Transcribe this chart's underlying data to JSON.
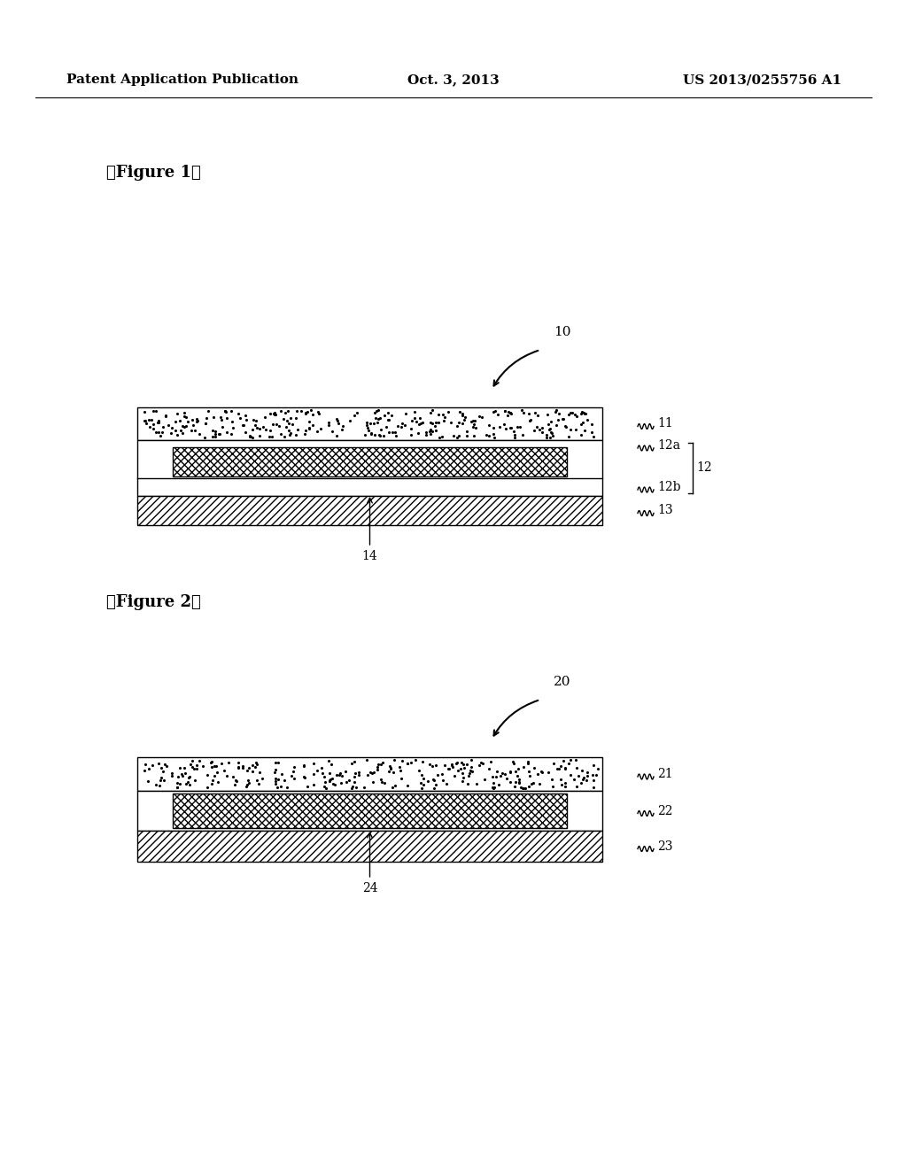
{
  "bg_color": "#ffffff",
  "header_left": "Patent Application Publication",
  "header_center": "Oct. 3, 2013",
  "header_right": "US 2013/0255756 A1",
  "fig1_label": "【Figure 1】",
  "fig2_label": "【Figure 2】",
  "fig1_ref": "10",
  "fig2_ref": "20",
  "fig1_layers": {
    "layer11_label": "11",
    "layer12a_label": "12a",
    "layer12b_label": "12b",
    "layer12_label": "12",
    "layer13_label": "13",
    "layer14_label": "14"
  },
  "fig2_layers": {
    "layer21_label": "21",
    "layer22_label": "22",
    "layer23_label": "23",
    "layer24_label": "24"
  }
}
